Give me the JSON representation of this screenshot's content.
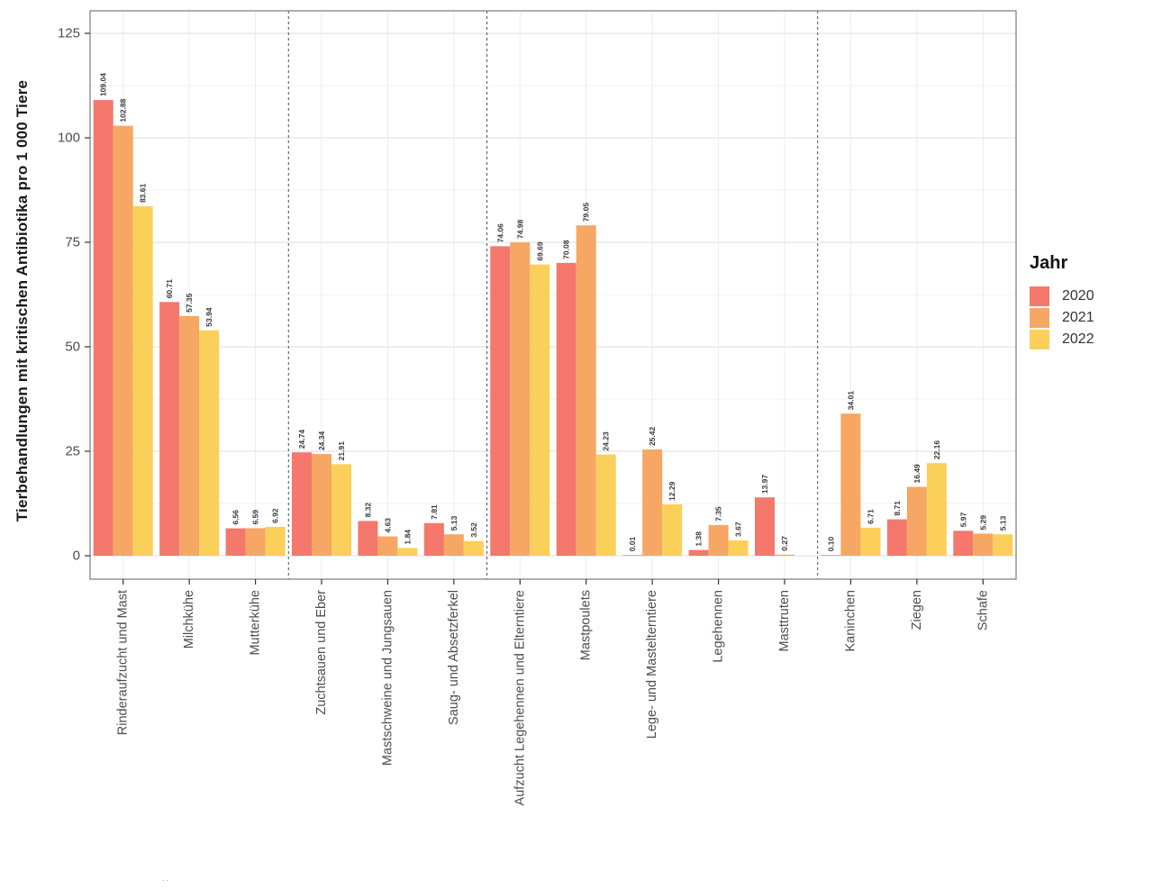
{
  "page": {
    "background": "#ffffff",
    "stray_mark": "··"
  },
  "chart_data": {
    "type": "bar",
    "title": "",
    "xlabel": "",
    "ylabel": "Tierbehandlungen mit kritischen Antibiotika pro 1 000 Tiere",
    "ylim": [
      0,
      125
    ],
    "yticks": [
      0,
      25,
      50,
      75,
      100,
      125
    ],
    "minor_grid_step": 12.5,
    "grid": "horizontal major+minor and vertical per-category, light gray on white",
    "legend": {
      "title": "Jahr",
      "position": "right",
      "entries": [
        {
          "label": "2020",
          "color": "#F4786C"
        },
        {
          "label": "2021",
          "color": "#F6A763"
        },
        {
          "label": "2022",
          "color": "#FAD05A"
        }
      ]
    },
    "categories": [
      "Rinderaufzucht und Mast",
      "Milchkühe",
      "Mutterkühe",
      "Zuchtsauen und Eber",
      "Mastschweine und Jungsauen",
      "Saug- und Absetzferkel",
      "Aufzucht Legehennen und Elterntiere",
      "Mastpoulets",
      "Lege- und Mastelterntiere",
      "Legehennen",
      "Masttruten",
      "Kaninchen",
      "Ziegen",
      "Schafe"
    ],
    "series": [
      {
        "name": "2020",
        "color": "#F4786C",
        "values": [
          109.04,
          60.71,
          6.56,
          24.74,
          8.32,
          7.81,
          74.06,
          70.08,
          0.01,
          1.38,
          13.97,
          0.1,
          8.71,
          5.97
        ]
      },
      {
        "name": "2021",
        "color": "#F6A763",
        "values": [
          102.88,
          57.35,
          6.59,
          24.34,
          4.63,
          5.13,
          74.98,
          79.05,
          25.42,
          7.35,
          0.27,
          34.01,
          16.49,
          5.29
        ]
      },
      {
        "name": "2022",
        "color": "#FAD05A",
        "values": [
          83.61,
          53.94,
          6.92,
          21.91,
          1.84,
          3.52,
          69.69,
          24.23,
          12.29,
          3.67,
          null,
          6.71,
          22.16,
          5.13
        ]
      }
    ],
    "bar_value_labels": "each bar is annotated with its value to 2 decimals, rotated 90°",
    "separators_after_category_index": [
      2,
      5,
      10
    ],
    "separator_style": "vertical dashed gray line spanning panel height"
  }
}
